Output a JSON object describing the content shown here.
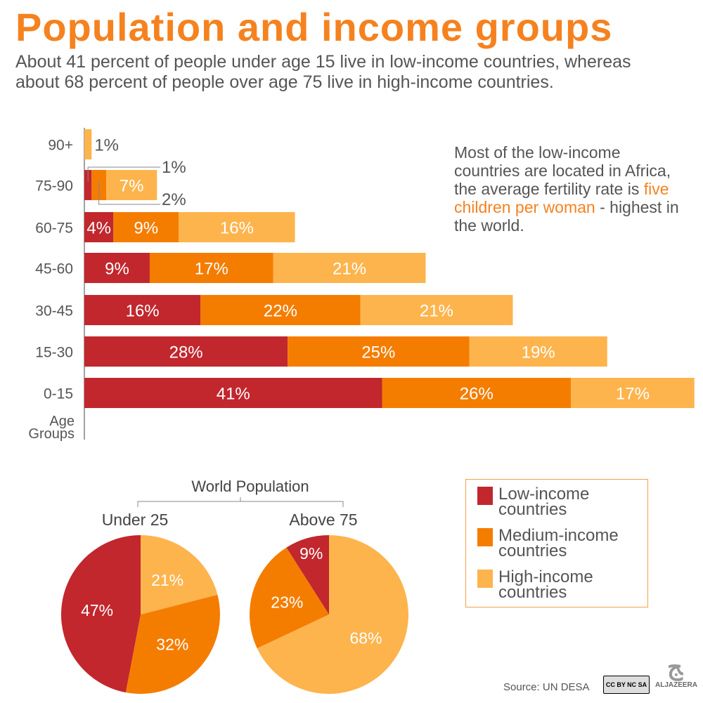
{
  "title": "Population and income groups",
  "subtitle": "About 41 percent of people under age 15 live in low-income countries, whereas about 68 percent of people over age 75 live in high-income countries.",
  "note": {
    "before": "Most of the low-income countries are located in Africa, the average fertility rate is ",
    "highlight": "five children per woman",
    "after": " - highest in the world."
  },
  "colors": {
    "low": "#c1272d",
    "medium": "#f47d00",
    "high": "#fdb44d",
    "accent": "#f5821f"
  },
  "chart_data": [
    {
      "type": "bar",
      "stacked": true,
      "orientation": "horizontal",
      "ylabel": "Age Groups",
      "categories": [
        "90+",
        "75-90",
        "60-75",
        "45-60",
        "30-45",
        "15-30",
        "0-15"
      ],
      "series": [
        {
          "name": "Low-income countries",
          "values": [
            0,
            1,
            4,
            9,
            16,
            28,
            41
          ]
        },
        {
          "name": "Medium-income countries",
          "values": [
            0,
            2,
            9,
            17,
            22,
            25,
            26
          ]
        },
        {
          "name": "High-income countries",
          "values": [
            1,
            7,
            16,
            21,
            21,
            19,
            17
          ]
        }
      ]
    },
    {
      "type": "pie",
      "group_title": "World Population",
      "title": "Under 25",
      "slices": [
        {
          "name": "High-income countries",
          "value": 21
        },
        {
          "name": "Medium-income countries",
          "value": 32
        },
        {
          "name": "Low-income countries",
          "value": 47
        }
      ]
    },
    {
      "type": "pie",
      "group_title": "World Population",
      "title": "Above 75",
      "slices": [
        {
          "name": "High-income countries",
          "value": 68
        },
        {
          "name": "Medium-income countries",
          "value": 23
        },
        {
          "name": "Low-income countries",
          "value": 9
        }
      ]
    }
  ],
  "ylabel_lines": [
    "Age",
    "Groups"
  ],
  "pie_group_title": "World Population",
  "legend": [
    {
      "label": "Low-income countries",
      "lines": [
        "Low-income",
        "countries"
      ]
    },
    {
      "label": "Medium-income countries",
      "lines": [
        "Medium-income",
        "countries"
      ]
    },
    {
      "label": "High-income countries",
      "lines": [
        "High-income",
        "countries"
      ]
    }
  ],
  "source": "Source: UN DESA",
  "license": "CC BY NC SA",
  "logo": "ALJAZEERA"
}
